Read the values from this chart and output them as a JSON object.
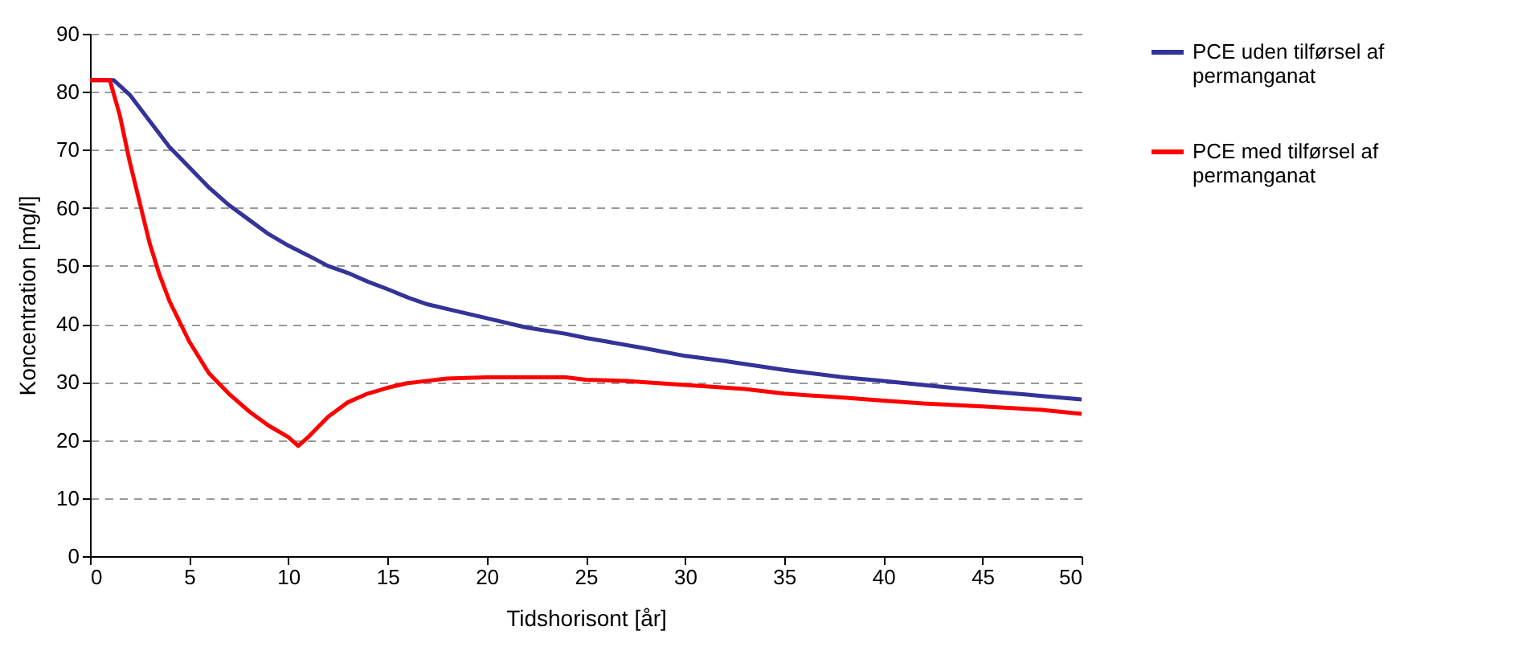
{
  "chart_data": {
    "type": "line",
    "xlabel": "Tidshorisont [år]",
    "ylabel": "Koncentration [mg/l]",
    "xlim": [
      0,
      50
    ],
    "xticks": [
      0,
      5,
      10,
      15,
      20,
      25,
      30,
      35,
      40,
      45,
      50
    ],
    "ylim": [
      0,
      90
    ],
    "yticks": [
      0,
      10,
      20,
      30,
      40,
      50,
      60,
      70,
      80,
      90
    ],
    "grid": "y",
    "legend": "right",
    "marker": "none",
    "line_style": "solid",
    "series": [
      {
        "name": "PCE uden tilførsel af permanganat",
        "color": "#333399",
        "x": [
          0,
          1.2,
          2,
          3,
          4,
          5,
          6,
          7,
          8,
          9,
          10,
          11,
          12,
          13,
          14,
          15,
          16,
          17,
          18,
          20,
          22,
          24,
          25,
          26,
          28,
          30,
          32,
          35,
          38,
          40,
          42,
          45,
          48,
          50
        ],
        "values": [
          82,
          82,
          79.5,
          75,
          70.5,
          67,
          63.5,
          60.5,
          58,
          55.5,
          53.5,
          51.8,
          50,
          48.8,
          47.3,
          46,
          44.6,
          43.4,
          42.6,
          41,
          39.4,
          38.3,
          37.6,
          37,
          35.8,
          34.5,
          33.6,
          32.1,
          30.8,
          30.2,
          29.5,
          28.5,
          27.6,
          27
        ]
      },
      {
        "name": "PCE med tilførsel af permanganat",
        "color": "#ff0000",
        "x": [
          0,
          1,
          1.5,
          2,
          2.5,
          3,
          3.5,
          4,
          5,
          6,
          7,
          8,
          9,
          10,
          10.5,
          11,
          12,
          13,
          14,
          15,
          16,
          17,
          18,
          20,
          24,
          25,
          27,
          30,
          33,
          35,
          38,
          40,
          42,
          45,
          48,
          50
        ],
        "values": [
          82,
          82,
          76,
          68,
          61,
          54,
          48.5,
          44,
          37,
          31.5,
          28,
          25,
          22.5,
          20.5,
          19,
          20.5,
          24,
          26.5,
          28,
          29,
          29.8,
          30.2,
          30.6,
          30.8,
          30.8,
          30.4,
          30.2,
          29.5,
          28.8,
          28,
          27.3,
          26.8,
          26.3,
          25.8,
          25.2,
          24.5
        ]
      }
    ]
  }
}
